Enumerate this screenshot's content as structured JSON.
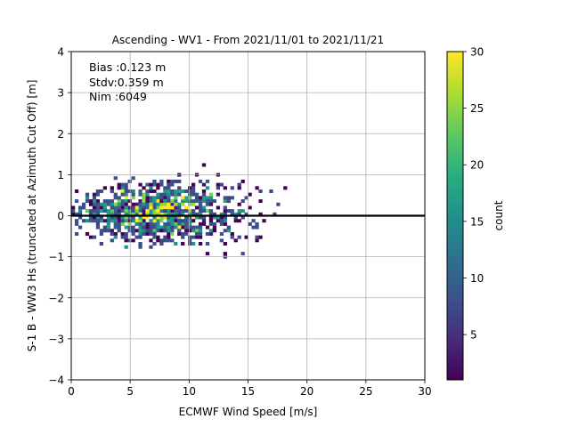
{
  "chart_data": {
    "type": "heatmap",
    "title": "Ascending - WV1 - From 2021/11/01 to 2021/11/21",
    "xlabel": "ECMWF Wind Speed [m/s]",
    "ylabel": "S-1 B - WW3 Hs (truncated at Azimuth Cut Off) [m]",
    "xlim": [
      0,
      30
    ],
    "ylim": [
      -4,
      4
    ],
    "xticks": [
      "0",
      "5",
      "10",
      "15",
      "20",
      "25",
      "30"
    ],
    "yticks": [
      "−4",
      "−3",
      "−2",
      "−1",
      "0",
      "1",
      "2",
      "3",
      "4"
    ],
    "grid": true,
    "reference_line_y": 0,
    "annotations": [
      "Bias :0.123 m",
      "Stdv:0.359 m",
      "Nim :6049"
    ],
    "colorbar": {
      "label": "count",
      "range": [
        1,
        30
      ],
      "ticks": [
        "5",
        "10",
        "15",
        "20",
        "25",
        "30"
      ],
      "colormap": "viridis"
    },
    "density_summary": {
      "bias_m": 0.123,
      "stdv_m": 0.359,
      "n": 6049
    }
  },
  "colors": {
    "grid": "#b0b0b0",
    "zero_line": "#000000",
    "cmap_low": "#440154",
    "cmap_high": "#fde725"
  }
}
